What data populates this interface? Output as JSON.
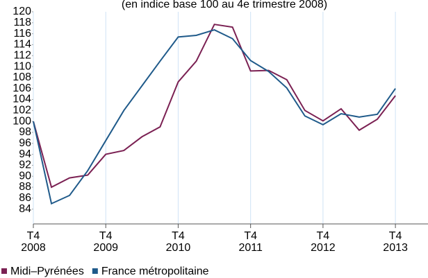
{
  "chart_data": {
    "type": "line",
    "subtitle": "(en indice base 100 au 4e trimestre 2008)",
    "x": [
      0,
      1,
      2,
      3,
      4,
      5,
      6,
      7,
      8,
      9,
      10,
      11,
      12,
      13,
      14,
      15,
      16,
      17,
      18,
      19,
      20
    ],
    "series": [
      {
        "name": "Midi–Pyrénées",
        "color": "#7b2153",
        "values": [
          100,
          88,
          89.7,
          90.2,
          94,
          94.7,
          97.2,
          99,
          107.2,
          111,
          117.7,
          117.2,
          109.2,
          109.3,
          107.6,
          102,
          100.1,
          102.3,
          98.4,
          100.4,
          104.7
        ]
      },
      {
        "name": "France métropolitaine",
        "color": "#1f5a8a",
        "values": [
          100,
          85,
          86.5,
          91,
          96.5,
          102,
          106.5,
          111,
          115.4,
          115.7,
          116.7,
          115.1,
          111.1,
          109.1,
          106.1,
          101,
          99.4,
          101.4,
          100.8,
          101.3,
          106
        ]
      }
    ],
    "xlim": [
      0,
      21.8
    ],
    "xticks": [
      {
        "value": 0,
        "label": "T4\n2008"
      },
      {
        "value": 4,
        "label": "T4\n2009"
      },
      {
        "value": 8,
        "label": "T4\n2010"
      },
      {
        "value": 12,
        "label": "T4\n2011"
      },
      {
        "value": 16,
        "label": "T4\n2012"
      },
      {
        "value": 20,
        "label": "T4\n2013"
      }
    ],
    "ylim": [
      81.3,
      120
    ],
    "yticks": [
      84,
      86,
      88,
      90,
      92,
      94,
      96,
      98,
      100,
      102,
      104,
      106,
      108,
      110,
      112,
      114,
      116,
      118,
      120
    ],
    "grid": true
  }
}
